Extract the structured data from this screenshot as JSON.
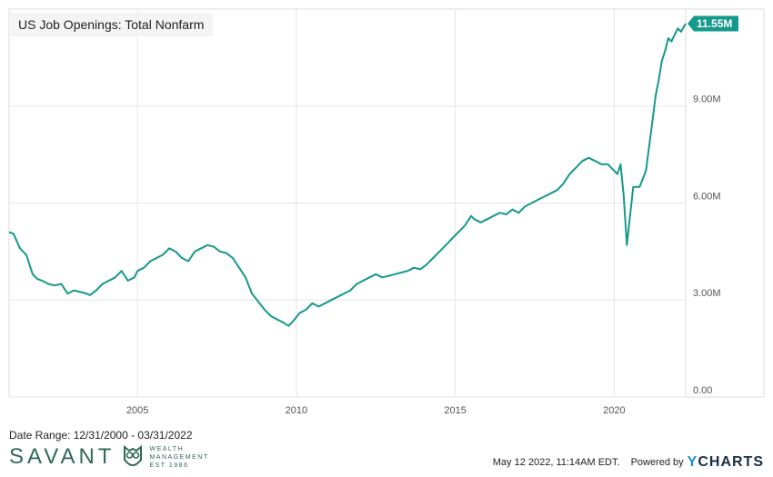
{
  "chart_data": {
    "type": "line",
    "title": "US Job Openings: Total Nonfarm",
    "xlim": [
      2000.96,
      2022.25
    ],
    "ylim": [
      0,
      11.55
    ],
    "y_ticks": [
      {
        "value": 0,
        "label": "0.00"
      },
      {
        "value": 3,
        "label": "3.00M"
      },
      {
        "value": 6,
        "label": "6.00M"
      },
      {
        "value": 9,
        "label": "9.00M"
      }
    ],
    "x_ticks": [
      {
        "value": 2005,
        "label": "2005"
      },
      {
        "value": 2010,
        "label": "2010"
      },
      {
        "value": 2015,
        "label": "2015"
      },
      {
        "value": 2020,
        "label": "2020"
      }
    ],
    "grid": true,
    "last_value_label": "11.55M",
    "line_color": "#15998a",
    "series": [
      {
        "x": [
          2000.96,
          2001.1,
          2001.3,
          2001.5,
          2001.7,
          2001.85,
          2002.0,
          2002.2,
          2002.4,
          2002.6,
          2002.8,
          2003.0,
          2003.2,
          2003.4,
          2003.5,
          2003.7,
          2003.9,
          2004.1,
          2004.3,
          2004.5,
          2004.7,
          2004.9,
          2005.0,
          2005.2,
          2005.4,
          2005.6,
          2005.8,
          2006.0,
          2006.2,
          2006.4,
          2006.6,
          2006.8,
          2007.0,
          2007.2,
          2007.4,
          2007.6,
          2007.8,
          2008.0,
          2008.2,
          2008.4,
          2008.6,
          2008.8,
          2009.0,
          2009.2,
          2009.4,
          2009.6,
          2009.75,
          2009.9,
          2010.1,
          2010.3,
          2010.5,
          2010.7,
          2010.9,
          2011.1,
          2011.3,
          2011.5,
          2011.7,
          2011.9,
          2012.1,
          2012.3,
          2012.5,
          2012.7,
          2012.9,
          2013.1,
          2013.3,
          2013.5,
          2013.7,
          2013.9,
          2014.1,
          2014.3,
          2014.5,
          2014.7,
          2014.9,
          2015.1,
          2015.3,
          2015.5,
          2015.6,
          2015.8,
          2016.0,
          2016.2,
          2016.4,
          2016.6,
          2016.8,
          2017.0,
          2017.2,
          2017.4,
          2017.6,
          2017.8,
          2018.0,
          2018.2,
          2018.4,
          2018.6,
          2018.8,
          2019.0,
          2019.2,
          2019.4,
          2019.6,
          2019.8,
          2019.9,
          2020.0,
          2020.1,
          2020.2,
          2020.3,
          2020.4,
          2020.5,
          2020.6,
          2020.8,
          2021.0,
          2021.2,
          2021.3,
          2021.4,
          2021.5,
          2021.6,
          2021.7,
          2021.8,
          2021.9,
          2022.0,
          2022.1,
          2022.25
        ],
        "values": [
          5.1,
          5.05,
          4.6,
          4.4,
          3.8,
          3.65,
          3.6,
          3.5,
          3.45,
          3.5,
          3.2,
          3.3,
          3.25,
          3.2,
          3.15,
          3.3,
          3.5,
          3.6,
          3.7,
          3.9,
          3.6,
          3.7,
          3.9,
          4.0,
          4.2,
          4.3,
          4.4,
          4.6,
          4.5,
          4.3,
          4.2,
          4.5,
          4.6,
          4.7,
          4.65,
          4.5,
          4.45,
          4.3,
          4.0,
          3.7,
          3.2,
          2.95,
          2.7,
          2.5,
          2.4,
          2.3,
          2.2,
          2.35,
          2.6,
          2.7,
          2.9,
          2.8,
          2.9,
          3.0,
          3.1,
          3.2,
          3.3,
          3.5,
          3.6,
          3.7,
          3.8,
          3.7,
          3.75,
          3.8,
          3.85,
          3.9,
          4.0,
          3.95,
          4.1,
          4.3,
          4.5,
          4.7,
          4.9,
          5.1,
          5.3,
          5.6,
          5.5,
          5.4,
          5.5,
          5.6,
          5.7,
          5.65,
          5.8,
          5.7,
          5.9,
          6.0,
          6.1,
          6.2,
          6.3,
          6.4,
          6.6,
          6.9,
          7.1,
          7.3,
          7.4,
          7.3,
          7.2,
          7.2,
          7.1,
          7.0,
          6.9,
          7.2,
          6.2,
          4.7,
          5.6,
          6.5,
          6.5,
          7.0,
          8.5,
          9.3,
          9.8,
          10.4,
          10.7,
          11.1,
          11.0,
          11.2,
          11.4,
          11.3,
          11.55
        ]
      }
    ]
  },
  "footer": {
    "date_range": "Date Range: 12/31/2000 - 03/31/2022",
    "brand_name": "SAVANT",
    "brand_sub_1": "WEALTH",
    "brand_sub_2": "MANAGEMENT",
    "brand_sub_3": "EST 1986",
    "timestamp": "May 12 2022, 11:14AM EDT.",
    "powered_by": "Powered by",
    "ycharts_y": "Y",
    "ycharts_rest": "CHARTS"
  }
}
